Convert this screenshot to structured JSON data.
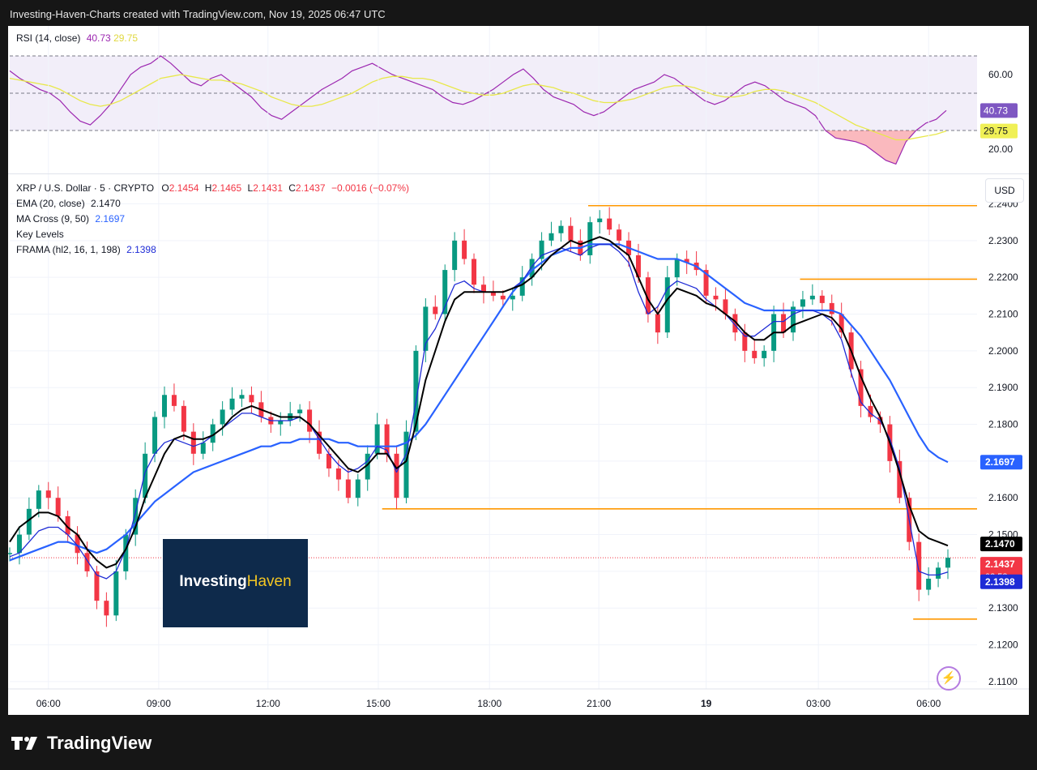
{
  "header": {
    "title": "Investing-Haven-Charts created with TradingView.com, Nov 19, 2025 06:47 UTC"
  },
  "rsi_legend": {
    "name": "RSI (14, close)",
    "value": "40.73",
    "ma_value": "29.75"
  },
  "main_legend": {
    "symbol": "XRP / U.S. Dollar · 5 · CRYPTO",
    "o_label": "O",
    "o": "2.1454",
    "h_label": "H",
    "h": "2.1465",
    "l_label": "L",
    "l": "2.1431",
    "c_label": "C",
    "c": "2.1437",
    "change": "−0.0016 (−0.07%)",
    "ema_label": "EMA (20, close)",
    "ema_value": "2.1470",
    "ma_label": "MA Cross (9, 50)",
    "ma_value": "2.1697",
    "key_levels_label": "Key Levels",
    "frama_label": "FRAMA (hl2, 16, 1, 198)",
    "frama_value": "2.1398"
  },
  "currency_button": "USD",
  "watermark": {
    "part1": "Investing",
    "part2": "Haven"
  },
  "footer": {
    "brand": "TradingView"
  },
  "colors": {
    "up": "#089981",
    "down": "#f23645",
    "ema": "#000000",
    "ma_slow": "#2962ff",
    "frama": "#1e2bd6",
    "key_level": "#ff9800",
    "rsi": "#9c27b0",
    "rsi_ma": "#e8e84a"
  },
  "chart_data": [
    {
      "type": "line",
      "title": "RSI (14, close)",
      "series": [
        {
          "name": "RSI",
          "values": [
            62,
            58,
            55,
            52,
            50,
            46,
            40,
            35,
            33,
            38,
            44,
            52,
            60,
            64,
            66,
            70,
            66,
            61,
            56,
            54,
            58,
            60,
            56,
            52,
            48,
            42,
            38,
            36,
            40,
            44,
            48,
            52,
            55,
            58,
            62,
            64,
            66,
            63,
            60,
            58,
            56,
            54,
            52,
            48,
            45,
            44,
            46,
            49,
            52,
            56,
            60,
            63,
            58,
            52,
            48,
            46,
            44,
            40,
            38,
            40,
            44,
            48,
            52,
            54,
            56,
            60,
            58,
            54,
            50,
            46,
            44,
            46,
            50,
            54,
            56,
            54,
            50,
            46,
            44,
            42,
            38,
            30,
            26,
            25,
            24,
            22,
            18,
            14,
            12,
            24,
            30,
            34,
            36,
            40.73
          ]
        },
        {
          "name": "RSI MA",
          "values": [
            58,
            57,
            56,
            55,
            54,
            52,
            49,
            46,
            44,
            43,
            44,
            46,
            49,
            52,
            55,
            58,
            59,
            60,
            59,
            58,
            57,
            57,
            56,
            55,
            53,
            51,
            48,
            46,
            44,
            43,
            43,
            44,
            46,
            48,
            50,
            53,
            56,
            58,
            59,
            59,
            58,
            58,
            57,
            55,
            53,
            51,
            50,
            49,
            49,
            50,
            52,
            54,
            55,
            54,
            53,
            51,
            50,
            48,
            46,
            45,
            45,
            46,
            47,
            49,
            51,
            53,
            54,
            54,
            53,
            51,
            49,
            48,
            48,
            49,
            51,
            52,
            52,
            51,
            49,
            47,
            45,
            42,
            39,
            36,
            33,
            31,
            29,
            27,
            25,
            25,
            26,
            27,
            28,
            29.75
          ]
        }
      ],
      "ticks": [
        "60.00",
        "20.00"
      ],
      "levels": [
        70,
        50,
        30
      ],
      "ylim": [
        10,
        80
      ]
    },
    {
      "type": "line",
      "title": "XRP / U.S. Dollar · 5 · CRYPTO",
      "x_ticks": [
        "06:00",
        "09:00",
        "12:00",
        "15:00",
        "18:00",
        "21:00",
        "19",
        "03:00",
        "06:00"
      ],
      "y_ticks": [
        "2.2400",
        "2.2300",
        "2.2200",
        "2.2100",
        "2.2000",
        "2.1900",
        "2.1800",
        "2.1700",
        "2.1600",
        "2.1500",
        "2.1400",
        "2.1300",
        "2.1200",
        "2.1100"
      ],
      "ylim": [
        2.108,
        2.2465
      ],
      "price": [
        2.145,
        2.15,
        2.157,
        2.162,
        2.16,
        2.155,
        2.15,
        2.145,
        2.14,
        2.132,
        2.128,
        2.14,
        2.15,
        2.16,
        2.172,
        2.182,
        2.188,
        2.185,
        2.178,
        2.172,
        2.175,
        2.18,
        2.184,
        2.187,
        2.188,
        2.186,
        2.182,
        2.18,
        2.181,
        2.183,
        2.184,
        2.178,
        2.172,
        2.168,
        2.165,
        2.16,
        2.165,
        2.172,
        2.18,
        2.172,
        2.16,
        2.178,
        2.2,
        2.212,
        2.21,
        2.222,
        2.23,
        2.225,
        2.218,
        2.216,
        2.215,
        2.214,
        2.215,
        2.22,
        2.225,
        2.23,
        2.232,
        2.234,
        2.23,
        2.226,
        2.235,
        2.236,
        2.233,
        2.23,
        2.226,
        2.22,
        2.21,
        2.205,
        2.22,
        2.225,
        2.224,
        2.222,
        2.215,
        2.214,
        2.21,
        2.205,
        2.2,
        2.198,
        2.2,
        2.21,
        2.205,
        2.212,
        2.214,
        2.215,
        2.213,
        2.21,
        2.205,
        2.195,
        2.185,
        2.182,
        2.18,
        2.17,
        2.16,
        2.148,
        2.135,
        2.138,
        2.141,
        2.1437
      ],
      "ema": [
        2.148,
        2.152,
        2.154,
        2.156,
        2.156,
        2.155,
        2.152,
        2.15,
        2.146,
        2.143,
        2.141,
        2.142,
        2.146,
        2.152,
        2.16,
        2.166,
        2.172,
        2.176,
        2.177,
        2.176,
        2.176,
        2.177,
        2.179,
        2.182,
        2.184,
        2.185,
        2.184,
        2.183,
        2.182,
        2.182,
        2.182,
        2.18,
        2.177,
        2.174,
        2.171,
        2.168,
        2.167,
        2.169,
        2.172,
        2.172,
        2.168,
        2.17,
        2.18,
        2.192,
        2.2,
        2.208,
        2.214,
        2.216,
        2.216,
        2.216,
        2.216,
        2.216,
        2.217,
        2.218,
        2.22,
        2.223,
        2.226,
        2.228,
        2.23,
        2.229,
        2.23,
        2.231,
        2.23,
        2.228,
        2.226,
        2.22,
        2.214,
        2.21,
        2.214,
        2.217,
        2.216,
        2.215,
        2.213,
        2.212,
        2.21,
        2.208,
        2.205,
        2.203,
        2.203,
        2.205,
        2.205,
        2.207,
        2.208,
        2.209,
        2.21,
        2.209,
        2.206,
        2.2,
        2.193,
        2.187,
        2.182,
        2.175,
        2.167,
        2.158,
        2.151,
        2.149,
        2.148,
        2.147
      ],
      "ma_slow": [
        2.143,
        2.144,
        2.145,
        2.146,
        2.147,
        2.148,
        2.148,
        2.147,
        2.146,
        2.145,
        2.146,
        2.148,
        2.15,
        2.153,
        2.156,
        2.159,
        2.161,
        2.163,
        2.165,
        2.167,
        2.168,
        2.169,
        2.17,
        2.171,
        2.172,
        2.173,
        2.174,
        2.174,
        2.175,
        2.175,
        2.176,
        2.176,
        2.176,
        2.176,
        2.175,
        2.175,
        2.174,
        2.174,
        2.174,
        2.174,
        2.174,
        2.175,
        2.177,
        2.18,
        2.184,
        2.188,
        2.192,
        2.196,
        2.2,
        2.204,
        2.208,
        2.212,
        2.216,
        2.219,
        2.222,
        2.224,
        2.226,
        2.227,
        2.228,
        2.228,
        2.229,
        2.229,
        2.229,
        2.229,
        2.228,
        2.227,
        2.226,
        2.225,
        2.225,
        2.225,
        2.224,
        2.223,
        2.221,
        2.219,
        2.217,
        2.215,
        2.213,
        2.212,
        2.211,
        2.211,
        2.211,
        2.211,
        2.211,
        2.211,
        2.211,
        2.211,
        2.21,
        2.207,
        2.204,
        2.2,
        2.196,
        2.192,
        2.187,
        2.182,
        2.177,
        2.173,
        2.171,
        2.1697
      ],
      "frama": [
        2.144,
        2.145,
        2.148,
        2.151,
        2.152,
        2.152,
        2.15,
        2.147,
        2.143,
        2.139,
        2.138,
        2.14,
        2.146,
        2.156,
        2.167,
        2.172,
        2.175,
        2.176,
        2.175,
        2.174,
        2.175,
        2.177,
        2.179,
        2.181,
        2.183,
        2.183,
        2.182,
        2.181,
        2.181,
        2.181,
        2.182,
        2.18,
        2.176,
        2.172,
        2.169,
        2.167,
        2.168,
        2.17,
        2.174,
        2.173,
        2.167,
        2.172,
        2.186,
        2.202,
        2.206,
        2.212,
        2.218,
        2.219,
        2.217,
        2.216,
        2.216,
        2.216,
        2.217,
        2.219,
        2.223,
        2.226,
        2.227,
        2.228,
        2.227,
        2.226,
        2.228,
        2.229,
        2.229,
        2.227,
        2.224,
        2.216,
        2.21,
        2.212,
        2.217,
        2.219,
        2.218,
        2.217,
        2.214,
        2.212,
        2.21,
        2.207,
        2.204,
        2.204,
        2.206,
        2.208,
        2.208,
        2.21,
        2.211,
        2.211,
        2.21,
        2.208,
        2.203,
        2.194,
        2.186,
        2.183,
        2.181,
        2.176,
        2.168,
        2.154,
        2.14,
        2.139,
        2.139,
        2.1398
      ],
      "key_levels": [
        {
          "value": 2.2395,
          "from": 0.598
        },
        {
          "value": 2.2195,
          "from": 0.817
        },
        {
          "value": 2.157,
          "from": 0.385
        },
        {
          "value": 2.127,
          "from": 0.934
        }
      ],
      "price_labels": [
        {
          "text": "2.1697",
          "value": 2.1697,
          "color": "#2962ff"
        },
        {
          "text": "2.1470",
          "value": 2.147,
          "color": "#000000"
        },
        {
          "text": "2.1437",
          "value": 2.1437,
          "color": "#f23645",
          "sub": "02:58"
        },
        {
          "text": "2.1398",
          "value": 2.1398,
          "color": "#1e2bd6"
        }
      ],
      "rsi_labels": [
        {
          "text": "40.73",
          "color": "#7e57c2"
        },
        {
          "text": "29.75",
          "color": "#f0f056"
        }
      ]
    }
  ]
}
